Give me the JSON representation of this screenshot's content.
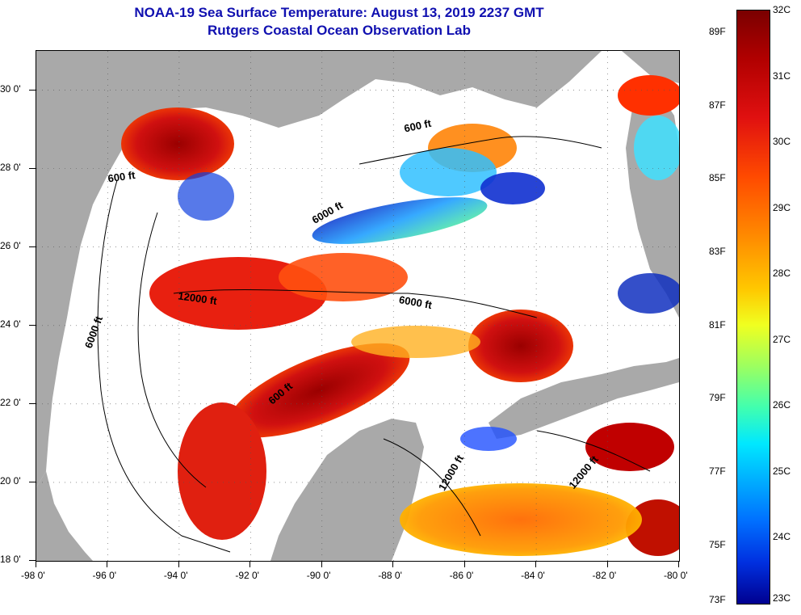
{
  "header": {
    "title": "NOAA-19 Sea Surface Temperature:  August 13, 2019 2237 GMT",
    "subtitle": "Rutgers Coastal Ocean Observation Lab"
  },
  "axes": {
    "lat_labels": [
      "30 0'",
      "28 0'",
      "26 0'",
      "24 0'",
      "22 0'",
      "20 0'",
      "18 0'"
    ],
    "lon_labels": [
      "-98 0'",
      "-96 0'",
      "-94 0'",
      "-92 0'",
      "-90 0'",
      "-88 0'",
      "-86 0'",
      "-84 0'",
      "-82 0'",
      "-80 0'"
    ],
    "lat_range": [
      18,
      31
    ],
    "lon_range": [
      -98,
      -80
    ]
  },
  "contour_labels": [
    {
      "text": "600 ft",
      "lon": -95.6,
      "lat": 27.7,
      "angle": -8
    },
    {
      "text": "600 ft",
      "lon": -87.3,
      "lat": 29.0,
      "angle": -12
    },
    {
      "text": "6000 ft",
      "lon": -89.8,
      "lat": 26.8,
      "angle": -30
    },
    {
      "text": "12000 ft",
      "lon": -93.5,
      "lat": 24.6,
      "angle": 8
    },
    {
      "text": "6000 ft",
      "lon": -96.3,
      "lat": 23.8,
      "angle": -70
    },
    {
      "text": "6000 ft",
      "lon": -87.4,
      "lat": 24.5,
      "angle": 10
    },
    {
      "text": "600 ft",
      "lon": -91.1,
      "lat": 22.2,
      "angle": -40
    },
    {
      "text": "12000 ft",
      "lon": -86.3,
      "lat": 20.2,
      "angle": -60
    },
    {
      "text": "12000 ft",
      "lon": -82.6,
      "lat": 20.2,
      "angle": -50
    }
  ],
  "colorbar": {
    "fahrenheit": [
      "89F",
      "87F",
      "85F",
      "83F",
      "81F",
      "79F",
      "77F",
      "75F",
      "73F"
    ],
    "celsius": [
      "32C",
      "31C",
      "30C",
      "29C",
      "28C",
      "27C",
      "26C",
      "25C",
      "24C",
      "23C"
    ]
  },
  "colors": {
    "land": "#a9a9a9",
    "cloud": "#ffffff",
    "title": "#1010b0"
  }
}
